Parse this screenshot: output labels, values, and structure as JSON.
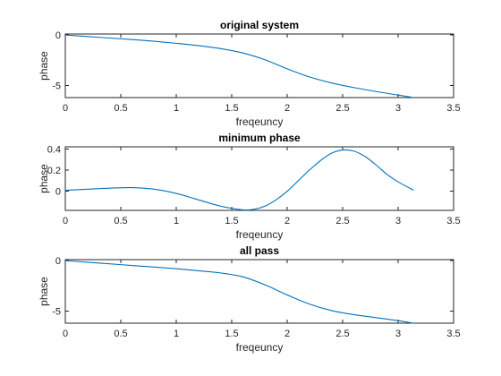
{
  "chart_data": [
    {
      "type": "line",
      "title": "original system",
      "xlabel": "freqeuncy",
      "ylabel": "phase",
      "xlim": [
        0,
        3.5
      ],
      "ylim": [
        -6.2,
        0.1
      ],
      "xticks": [
        "0",
        "0.5",
        "1",
        "1.5",
        "2",
        "2.5",
        "3",
        "3.5"
      ],
      "yticks": [
        "0",
        "-5"
      ],
      "grid": false,
      "series_color": "#0072bd",
      "x": [
        0,
        0.2,
        0.4,
        0.6,
        0.8,
        1.0,
        1.2,
        1.4,
        1.6,
        1.8,
        2.0,
        2.2,
        2.4,
        2.6,
        2.8,
        3.0,
        3.14
      ],
      "values": [
        0,
        -0.15,
        -0.3,
        -0.45,
        -0.62,
        -0.82,
        -1.05,
        -1.35,
        -1.78,
        -2.45,
        -3.35,
        -4.15,
        -4.75,
        -5.2,
        -5.6,
        -5.95,
        -6.2
      ]
    },
    {
      "type": "line",
      "title": "minimum phase",
      "xlabel": "freqeuncy",
      "ylabel": "phase",
      "xlim": [
        0,
        3.5
      ],
      "ylim": [
        -0.18,
        0.42
      ],
      "xticks": [
        "0",
        "0.5",
        "1",
        "1.5",
        "2",
        "2.5",
        "3",
        "3.5"
      ],
      "yticks": [
        "0",
        "0.2",
        "0.4"
      ],
      "grid": false,
      "series_color": "#0072bd",
      "x": [
        0,
        0.2,
        0.4,
        0.6,
        0.8,
        1.0,
        1.2,
        1.4,
        1.6,
        1.7,
        1.8,
        1.9,
        2.0,
        2.1,
        2.2,
        2.3,
        2.4,
        2.5,
        2.6,
        2.7,
        2.8,
        2.9,
        3.0,
        3.14
      ],
      "values": [
        0.01,
        0.02,
        0.03,
        0.035,
        0.02,
        -0.02,
        -0.08,
        -0.14,
        -0.175,
        -0.17,
        -0.14,
        -0.08,
        0.0,
        0.1,
        0.2,
        0.29,
        0.36,
        0.39,
        0.38,
        0.33,
        0.25,
        0.16,
        0.09,
        0.01
      ]
    },
    {
      "type": "line",
      "title": "all pass",
      "xlabel": "freqeuncy",
      "ylabel": "phase",
      "xlim": [
        0,
        3.5
      ],
      "ylim": [
        -6.2,
        0.1
      ],
      "xticks": [
        "0",
        "0.5",
        "1",
        "1.5",
        "2",
        "2.5",
        "3",
        "3.5"
      ],
      "yticks": [
        "0",
        "-5"
      ],
      "grid": false,
      "series_color": "#0072bd",
      "x": [
        0,
        0.2,
        0.4,
        0.6,
        0.8,
        1.0,
        1.2,
        1.4,
        1.6,
        1.8,
        2.0,
        2.2,
        2.4,
        2.6,
        2.8,
        3.0,
        3.14
      ],
      "values": [
        0,
        -0.16,
        -0.32,
        -0.48,
        -0.64,
        -0.8,
        -1.0,
        -1.22,
        -1.6,
        -2.4,
        -3.4,
        -4.3,
        -4.95,
        -5.35,
        -5.65,
        -5.95,
        -6.2
      ]
    }
  ]
}
